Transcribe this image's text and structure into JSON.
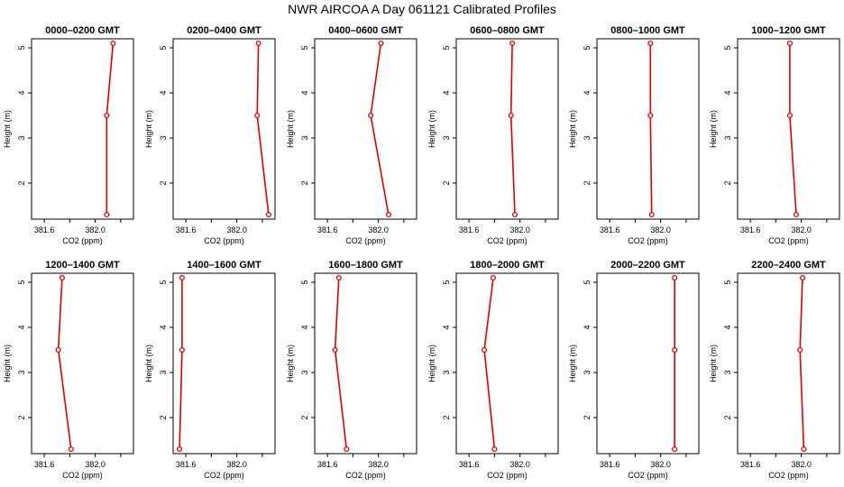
{
  "title": "NWR AIRCOA A  Day 061121  Calibrated Profiles",
  "chart_data": {
    "type": "line",
    "xlabel": "CO2 (ppm)",
    "ylabel": "Height (m)",
    "xlim": [
      381.5,
      382.3
    ],
    "ylim": [
      1.2,
      5.2
    ],
    "x_ticks": [
      "381.6",
      "382.0"
    ],
    "y_ticks": [
      "2",
      "3",
      "4",
      "5"
    ],
    "panels": [
      {
        "title": "0000–0200 GMT",
        "x": [
          382.14,
          382.09,
          382.09
        ],
        "y": [
          5.1,
          3.5,
          1.3
        ]
      },
      {
        "title": "0200–0400 GMT",
        "x": [
          382.17,
          382.16,
          382.25
        ],
        "y": [
          5.1,
          3.5,
          1.3
        ]
      },
      {
        "title": "0400–0600 GMT",
        "x": [
          382.02,
          381.94,
          382.08
        ],
        "y": [
          5.1,
          3.5,
          1.3
        ]
      },
      {
        "title": "0600–0800 GMT",
        "x": [
          381.94,
          381.93,
          381.96
        ],
        "y": [
          5.1,
          3.5,
          1.3
        ]
      },
      {
        "title": "0800–1000 GMT",
        "x": [
          381.92,
          381.92,
          381.93
        ],
        "y": [
          5.1,
          3.5,
          1.3
        ]
      },
      {
        "title": "1000–1200 GMT",
        "x": [
          381.91,
          381.91,
          381.96
        ],
        "y": [
          5.1,
          3.5,
          1.3
        ]
      },
      {
        "title": "1200–1400 GMT",
        "x": [
          381.74,
          381.71,
          381.81
        ],
        "y": [
          5.1,
          3.5,
          1.3
        ]
      },
      {
        "title": "1400–1600 GMT",
        "x": [
          381.57,
          381.57,
          381.55
        ],
        "y": [
          5.1,
          3.5,
          1.3
        ]
      },
      {
        "title": "1600–1800 GMT",
        "x": [
          381.69,
          381.66,
          381.75
        ],
        "y": [
          5.1,
          3.5,
          1.3
        ]
      },
      {
        "title": "1800–2000 GMT",
        "x": [
          381.79,
          381.72,
          381.8
        ],
        "y": [
          5.1,
          3.5,
          1.3
        ]
      },
      {
        "title": "2000–2200 GMT",
        "x": [
          382.11,
          382.11,
          382.11
        ],
        "y": [
          5.1,
          3.5,
          1.3
        ]
      },
      {
        "title": "2200–2400 GMT",
        "x": [
          382.01,
          381.99,
          382.02
        ],
        "y": [
          5.1,
          3.5,
          1.3
        ]
      }
    ]
  }
}
